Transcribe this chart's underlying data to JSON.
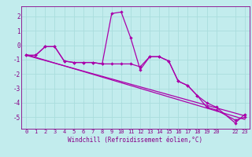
{
  "xlabel": "Windchill (Refroidissement éolien,°C)",
  "bg_color": "#c2eced",
  "line_color": "#aa00aa",
  "grid_color": "#aadddd",
  "xlim": [
    -0.5,
    23.5
  ],
  "ylim": [
    -5.8,
    2.7
  ],
  "yticks": [
    -5,
    -4,
    -3,
    -2,
    -1,
    0,
    1,
    2
  ],
  "xtick_vals": [
    0,
    1,
    2,
    3,
    4,
    5,
    6,
    7,
    8,
    9,
    10,
    11,
    12,
    13,
    14,
    15,
    16,
    17,
    18,
    19,
    20,
    22,
    23
  ],
  "xtick_labels": [
    "0",
    "1",
    "2",
    "3",
    "4",
    "5",
    "6",
    "7",
    "8",
    "9",
    "10",
    "11",
    "12",
    "13",
    "14",
    "15",
    "16",
    "17",
    "18",
    "19",
    "20",
    "22",
    "23"
  ],
  "series1_x": [
    0,
    1,
    2,
    3,
    4,
    5,
    6,
    7,
    8,
    9,
    10,
    11,
    12,
    13,
    14,
    15,
    16,
    17,
    18,
    19,
    20,
    22,
    23
  ],
  "series1_y": [
    -0.7,
    -0.7,
    -0.1,
    -0.1,
    -1.1,
    -1.2,
    -1.2,
    -1.2,
    -1.3,
    2.2,
    2.3,
    0.5,
    -1.7,
    -0.8,
    -0.8,
    -1.1,
    -2.5,
    -2.8,
    -3.5,
    -4.3,
    -4.5,
    -5.2,
    -5.0
  ],
  "series2_x": [
    0,
    1,
    2,
    3,
    4,
    5,
    6,
    7,
    8,
    9,
    10,
    11,
    12,
    13,
    14,
    15,
    16,
    17,
    18,
    19,
    20,
    22,
    23
  ],
  "series2_y": [
    -0.7,
    -0.7,
    -0.1,
    -0.1,
    -1.1,
    -1.2,
    -1.2,
    -1.2,
    -1.3,
    -1.3,
    -1.3,
    -1.3,
    -1.5,
    -0.8,
    -0.8,
    -1.1,
    -2.5,
    -2.8,
    -3.5,
    -4.0,
    -4.3,
    -5.4,
    -4.8
  ],
  "series3_x": [
    0,
    23
  ],
  "series3_y": [
    -0.7,
    -4.9
  ],
  "series4_x": [
    0,
    23
  ],
  "series4_y": [
    -0.65,
    -5.15
  ]
}
